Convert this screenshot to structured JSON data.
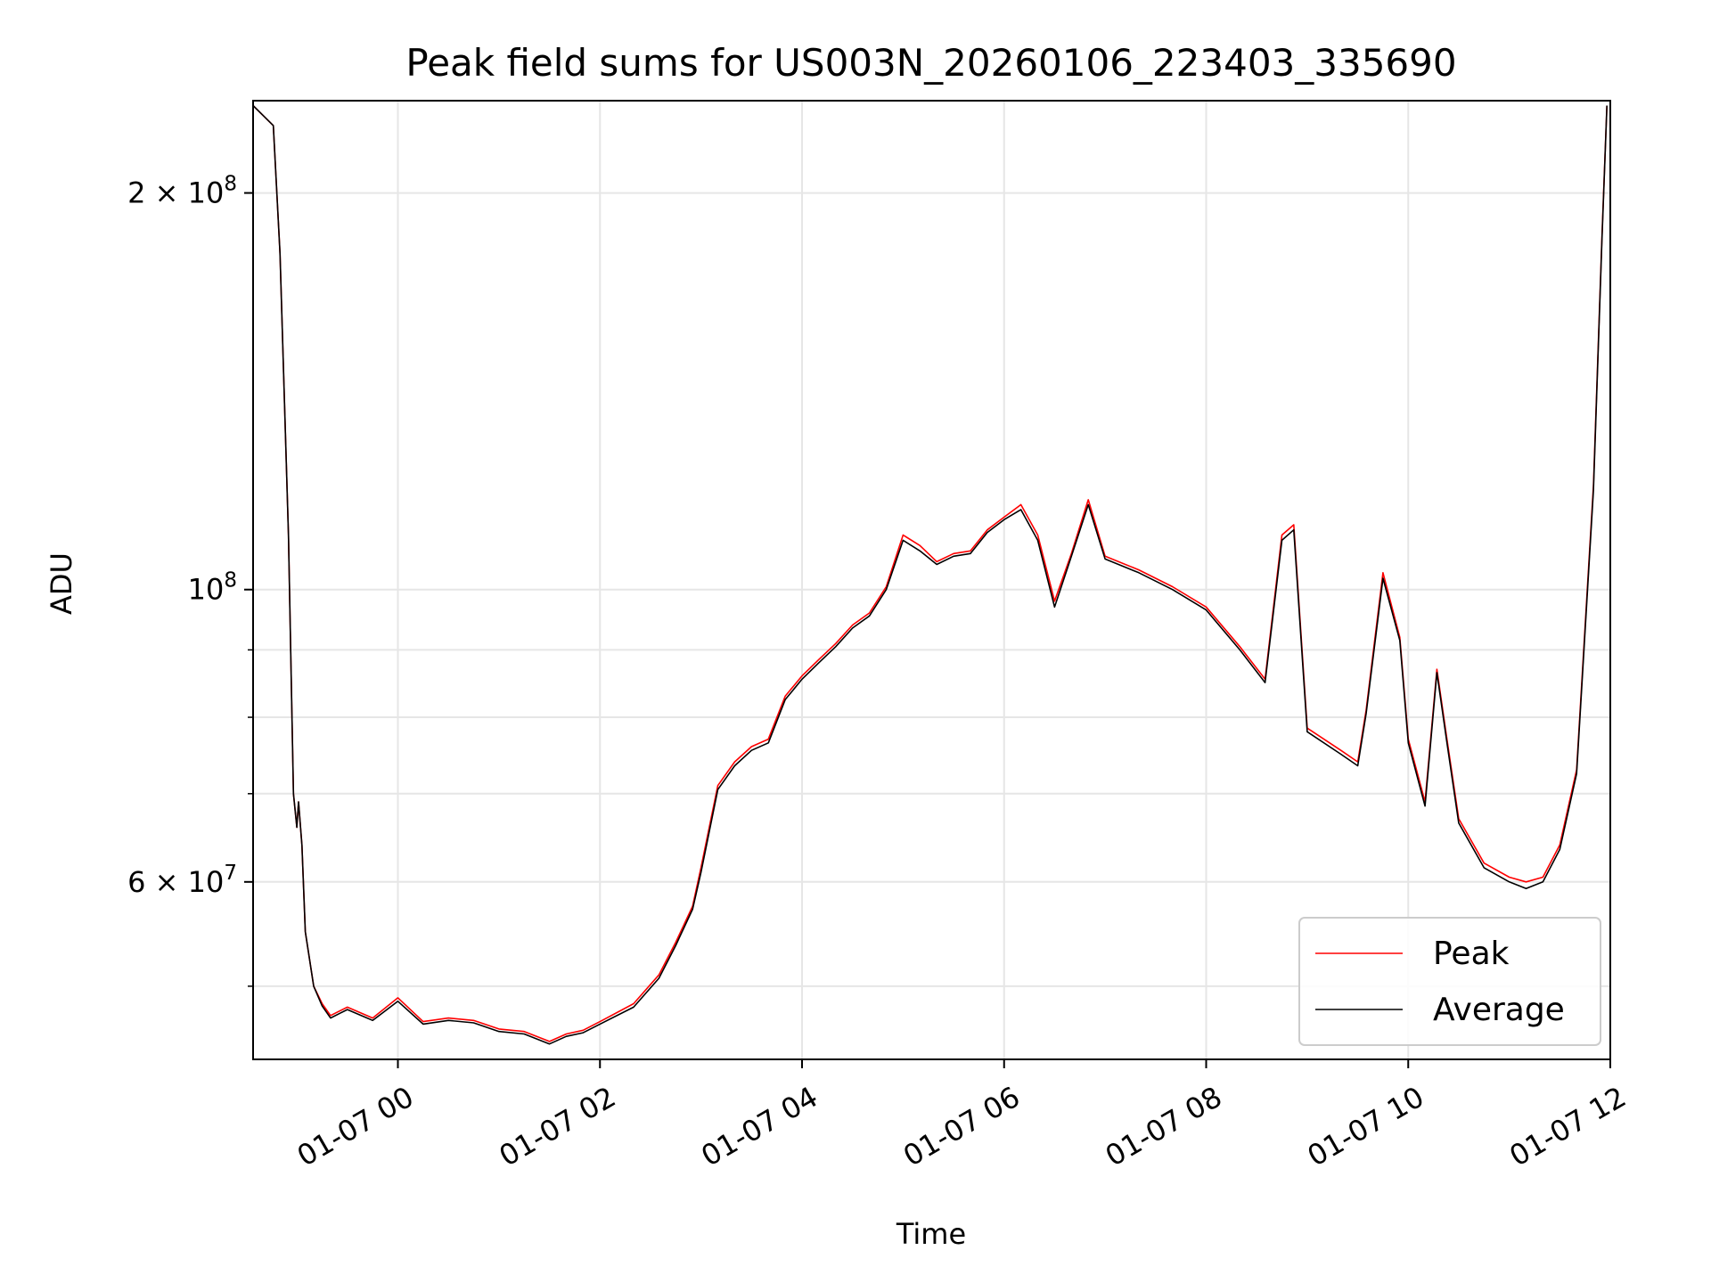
{
  "chart_data": {
    "type": "line",
    "title": "Peak field sums for US003N_20260106_223403_335690",
    "xlabel": "Time",
    "ylabel": "ADU",
    "yscale": "log",
    "xlim": [
      "2026-01-06 22:34",
      "2026-01-07 12:00"
    ],
    "ylim": [
      44000000,
      235000000
    ],
    "grid": true,
    "legend": "lower right",
    "x_ticks": [
      {
        "t": "2026-01-07 00:00",
        "label": "01-07 00"
      },
      {
        "t": "2026-01-07 02:00",
        "label": "01-07 02"
      },
      {
        "t": "2026-01-07 04:00",
        "label": "01-07 04"
      },
      {
        "t": "2026-01-07 06:00",
        "label": "01-07 06"
      },
      {
        "t": "2026-01-07 08:00",
        "label": "01-07 08"
      },
      {
        "t": "2026-01-07 10:00",
        "label": "01-07 10"
      },
      {
        "t": "2026-01-07 12:00",
        "label": "01-07 12"
      }
    ],
    "y_major_ticks": [
      {
        "value": 200000000,
        "base": "2 × 10",
        "exp": "8"
      },
      {
        "value": 100000000,
        "base": "10",
        "exp": "8"
      },
      {
        "value": 60000000,
        "base": "6 × 10",
        "exp": "7"
      }
    ],
    "y_minor_ticks": [
      50000000,
      70000000,
      80000000,
      90000000
    ],
    "x": [
      "2026-01-06 22:34",
      "2026-01-06 22:46",
      "2026-01-06 22:50",
      "2026-01-06 22:55",
      "2026-01-06 22:58",
      "2026-01-06 23:00",
      "2026-01-06 23:01",
      "2026-01-06 23:03",
      "2026-01-06 23:05",
      "2026-01-06 23:10",
      "2026-01-06 23:15",
      "2026-01-06 23:20",
      "2026-01-06 23:30",
      "2026-01-06 23:45",
      "2026-01-07 00:00",
      "2026-01-07 00:15",
      "2026-01-07 00:30",
      "2026-01-07 00:45",
      "2026-01-07 01:00",
      "2026-01-07 01:15",
      "2026-01-07 01:30",
      "2026-01-07 01:40",
      "2026-01-07 01:50",
      "2026-01-07 02:00",
      "2026-01-07 02:20",
      "2026-01-07 02:35",
      "2026-01-07 02:45",
      "2026-01-07 02:55",
      "2026-01-07 03:00",
      "2026-01-07 03:10",
      "2026-01-07 03:20",
      "2026-01-07 03:30",
      "2026-01-07 03:40",
      "2026-01-07 03:50",
      "2026-01-07 04:00",
      "2026-01-07 04:10",
      "2026-01-07 04:20",
      "2026-01-07 04:30",
      "2026-01-07 04:40",
      "2026-01-07 04:50",
      "2026-01-07 05:00",
      "2026-01-07 05:10",
      "2026-01-07 05:20",
      "2026-01-07 05:30",
      "2026-01-07 05:40",
      "2026-01-07 05:50",
      "2026-01-07 06:00",
      "2026-01-07 06:10",
      "2026-01-07 06:20",
      "2026-01-07 06:30",
      "2026-01-07 06:40",
      "2026-01-07 06:50",
      "2026-01-07 07:00",
      "2026-01-07 07:20",
      "2026-01-07 07:40",
      "2026-01-07 08:00",
      "2026-01-07 08:20",
      "2026-01-07 08:35",
      "2026-01-07 08:45",
      "2026-01-07 08:52",
      "2026-01-07 09:00",
      "2026-01-07 09:20",
      "2026-01-07 09:30",
      "2026-01-07 09:35",
      "2026-01-07 09:45",
      "2026-01-07 09:55",
      "2026-01-07 10:00",
      "2026-01-07 10:10",
      "2026-01-07 10:17",
      "2026-01-07 10:23",
      "2026-01-07 10:30",
      "2026-01-07 10:45",
      "2026-01-07 11:00",
      "2026-01-07 11:10",
      "2026-01-07 11:20",
      "2026-01-07 11:30",
      "2026-01-07 11:40",
      "2026-01-07 11:50",
      "2026-01-07 11:55",
      "2026-01-07 11:58"
    ],
    "series": [
      {
        "name": "Peak",
        "color": "#ff0000",
        "values": [
          233000000,
          225000000,
          180000000,
          110000000,
          70000000,
          66000000,
          69000000,
          64000000,
          55000000,
          50000000,
          48500000,
          47500000,
          48200000,
          47300000,
          49000000,
          47000000,
          47300000,
          47100000,
          46400000,
          46200000,
          45400000,
          46000000,
          46300000,
          47000000,
          48500000,
          51000000,
          54000000,
          57500000,
          61500000,
          71000000,
          74000000,
          76000000,
          77000000,
          83000000,
          86000000,
          88500000,
          91000000,
          94000000,
          96000000,
          100500000,
          110000000,
          108000000,
          105000000,
          106500000,
          107000000,
          111000000,
          113500000,
          116000000,
          110000000,
          98000000,
          106500000,
          117000000,
          106000000,
          103500000,
          100500000,
          97000000,
          90500000,
          85500000,
          110000000,
          112000000,
          78500000,
          75500000,
          74000000,
          81000000,
          103000000,
          92000000,
          77000000,
          69000000,
          87000000,
          77000000,
          67000000,
          62000000,
          60500000,
          60000000,
          60500000,
          64000000,
          73000000,
          120000000,
          185000000,
          233000000
        ]
      },
      {
        "name": "Average",
        "color": "#000000",
        "values": [
          233000000,
          225000000,
          180000000,
          110000000,
          70000000,
          66000000,
          69000000,
          64000000,
          55000000,
          50000000,
          48300000,
          47300000,
          48000000,
          47100000,
          48700000,
          46800000,
          47100000,
          46900000,
          46200000,
          46000000,
          45200000,
          45800000,
          46100000,
          46800000,
          48200000,
          50700000,
          53700000,
          57200000,
          61000000,
          70500000,
          73500000,
          75500000,
          76500000,
          82500000,
          85500000,
          88000000,
          90500000,
          93500000,
          95500000,
          100000000,
          109000000,
          107000000,
          104500000,
          106000000,
          106500000,
          110500000,
          113000000,
          115000000,
          109000000,
          97000000,
          106000000,
          116000000,
          105500000,
          103000000,
          100000000,
          96500000,
          90000000,
          85000000,
          109000000,
          111000000,
          78000000,
          75000000,
          73500000,
          80500000,
          102000000,
          91500000,
          76500000,
          68500000,
          86500000,
          76500000,
          66500000,
          61500000,
          60000000,
          59300000,
          60000000,
          63500000,
          72500000,
          119000000,
          184000000,
          233000000
        ]
      }
    ]
  }
}
